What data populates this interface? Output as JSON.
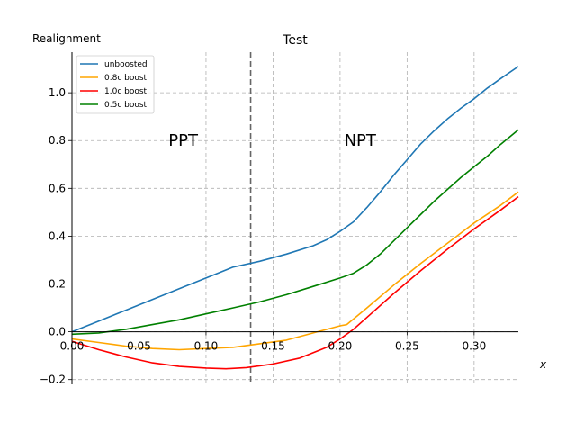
{
  "chart_data": {
    "type": "line",
    "title": "Test",
    "ylabel": "Realignment",
    "xlabel": "x",
    "xlim": [
      0.0,
      0.333
    ],
    "ylim": [
      -0.22,
      1.17
    ],
    "xticks": [
      0.0,
      0.05,
      0.1,
      0.15,
      0.2,
      0.25,
      0.3
    ],
    "xtick_labels": [
      "0.00",
      "0.05",
      "0.10",
      "0.15",
      "0.20",
      "0.25",
      "0.30"
    ],
    "yticks": [
      -0.2,
      0.0,
      0.2,
      0.4,
      0.6,
      0.8,
      1.0
    ],
    "ytick_labels": [
      "−0.2",
      "0.0",
      "0.2",
      "0.4",
      "0.6",
      "0.8",
      "1.0"
    ],
    "grid": true,
    "legend_position": "top-left",
    "vline_x": 0.1333,
    "annotations": [
      {
        "text": "PPT",
        "x": 0.083,
        "y": 0.8
      },
      {
        "text": "NPT",
        "x": 0.215,
        "y": 0.8
      }
    ],
    "series": [
      {
        "name": "unboosted",
        "color": "#1f77b4",
        "x": [
          0.0,
          0.02,
          0.04,
          0.06,
          0.08,
          0.1,
          0.12,
          0.14,
          0.16,
          0.18,
          0.19,
          0.2,
          0.21,
          0.22,
          0.23,
          0.24,
          0.25,
          0.26,
          0.27,
          0.28,
          0.29,
          0.3,
          0.31,
          0.32,
          0.333
        ],
        "y": [
          0.0,
          0.045,
          0.09,
          0.135,
          0.18,
          0.225,
          0.27,
          0.295,
          0.325,
          0.36,
          0.385,
          0.42,
          0.46,
          0.52,
          0.585,
          0.655,
          0.72,
          0.785,
          0.84,
          0.89,
          0.935,
          0.975,
          1.02,
          1.06,
          1.11
        ]
      },
      {
        "name": "0.8c boost",
        "color": "#ffa500",
        "x": [
          0.0,
          0.02,
          0.04,
          0.06,
          0.08,
          0.1,
          0.12,
          0.14,
          0.16,
          0.18,
          0.2,
          0.205,
          0.22,
          0.24,
          0.26,
          0.28,
          0.3,
          0.32,
          0.333
        ],
        "y": [
          -0.03,
          -0.045,
          -0.06,
          -0.07,
          -0.075,
          -0.07,
          -0.065,
          -0.05,
          -0.035,
          -0.005,
          0.025,
          0.03,
          0.1,
          0.195,
          0.285,
          0.37,
          0.455,
          0.53,
          0.585
        ]
      },
      {
        "name": "1.0c boost",
        "color": "#ff0000",
        "x": [
          0.0,
          0.02,
          0.04,
          0.06,
          0.08,
          0.1,
          0.115,
          0.13,
          0.15,
          0.17,
          0.19,
          0.2,
          0.21,
          0.22,
          0.24,
          0.26,
          0.28,
          0.3,
          0.32,
          0.333
        ],
        "y": [
          -0.04,
          -0.075,
          -0.105,
          -0.13,
          -0.145,
          -0.152,
          -0.155,
          -0.15,
          -0.135,
          -0.11,
          -0.065,
          -0.03,
          0.01,
          0.06,
          0.16,
          0.255,
          0.345,
          0.43,
          0.51,
          0.565
        ]
      },
      {
        "name": "0.5c boost",
        "color": "#008000",
        "x": [
          0.0,
          0.02,
          0.04,
          0.06,
          0.08,
          0.1,
          0.12,
          0.14,
          0.16,
          0.18,
          0.2,
          0.21,
          0.22,
          0.23,
          0.24,
          0.25,
          0.26,
          0.27,
          0.28,
          0.29,
          0.3,
          0.31,
          0.32,
          0.333
        ],
        "y": [
          -0.01,
          -0.005,
          0.01,
          0.03,
          0.05,
          0.075,
          0.1,
          0.125,
          0.155,
          0.19,
          0.225,
          0.245,
          0.28,
          0.325,
          0.38,
          0.435,
          0.49,
          0.545,
          0.595,
          0.645,
          0.69,
          0.735,
          0.785,
          0.845
        ]
      }
    ]
  }
}
